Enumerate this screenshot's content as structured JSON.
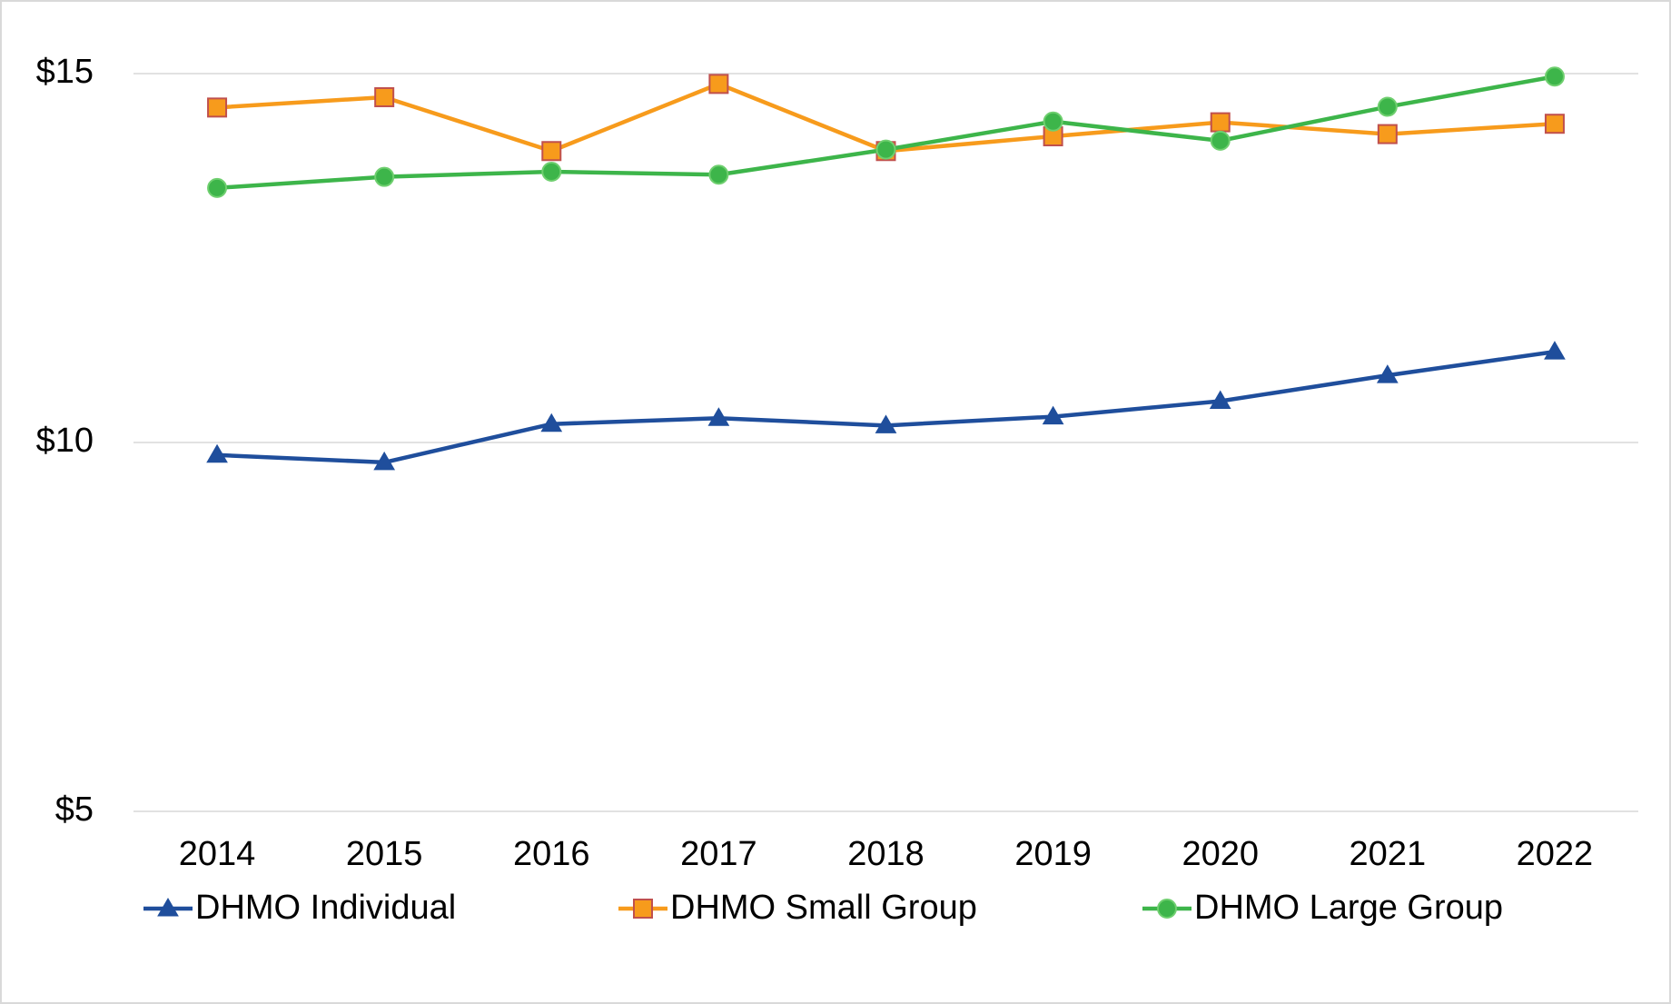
{
  "chart_data": {
    "type": "line",
    "categories": [
      "2014",
      "2015",
      "2016",
      "2017",
      "2018",
      "2019",
      "2020",
      "2021",
      "2022"
    ],
    "series": [
      {
        "name": "DHMO Individual",
        "color": "#1f4e9c",
        "marker": "triangle",
        "values": [
          9.83,
          9.73,
          10.25,
          10.33,
          10.23,
          10.35,
          10.56,
          10.91,
          11.23
        ]
      },
      {
        "name": "DHMO Small Group",
        "color": "#f79b1c",
        "marker": "square",
        "values": [
          14.54,
          14.68,
          13.95,
          14.86,
          13.95,
          14.15,
          14.34,
          14.18,
          14.32
        ]
      },
      {
        "name": "DHMO Large Group",
        "color": "#3db54a",
        "marker": "circle",
        "values": [
          13.45,
          13.6,
          13.67,
          13.63,
          13.97,
          14.35,
          14.09,
          14.55,
          14.96
        ]
      }
    ],
    "ylim": [
      5,
      15
    ],
    "yticks": [
      {
        "value": 5,
        "label": "$5"
      },
      {
        "value": 10,
        "label": "$10"
      },
      {
        "value": 15,
        "label": "$15"
      }
    ],
    "grid": true,
    "legend": "bottom"
  }
}
